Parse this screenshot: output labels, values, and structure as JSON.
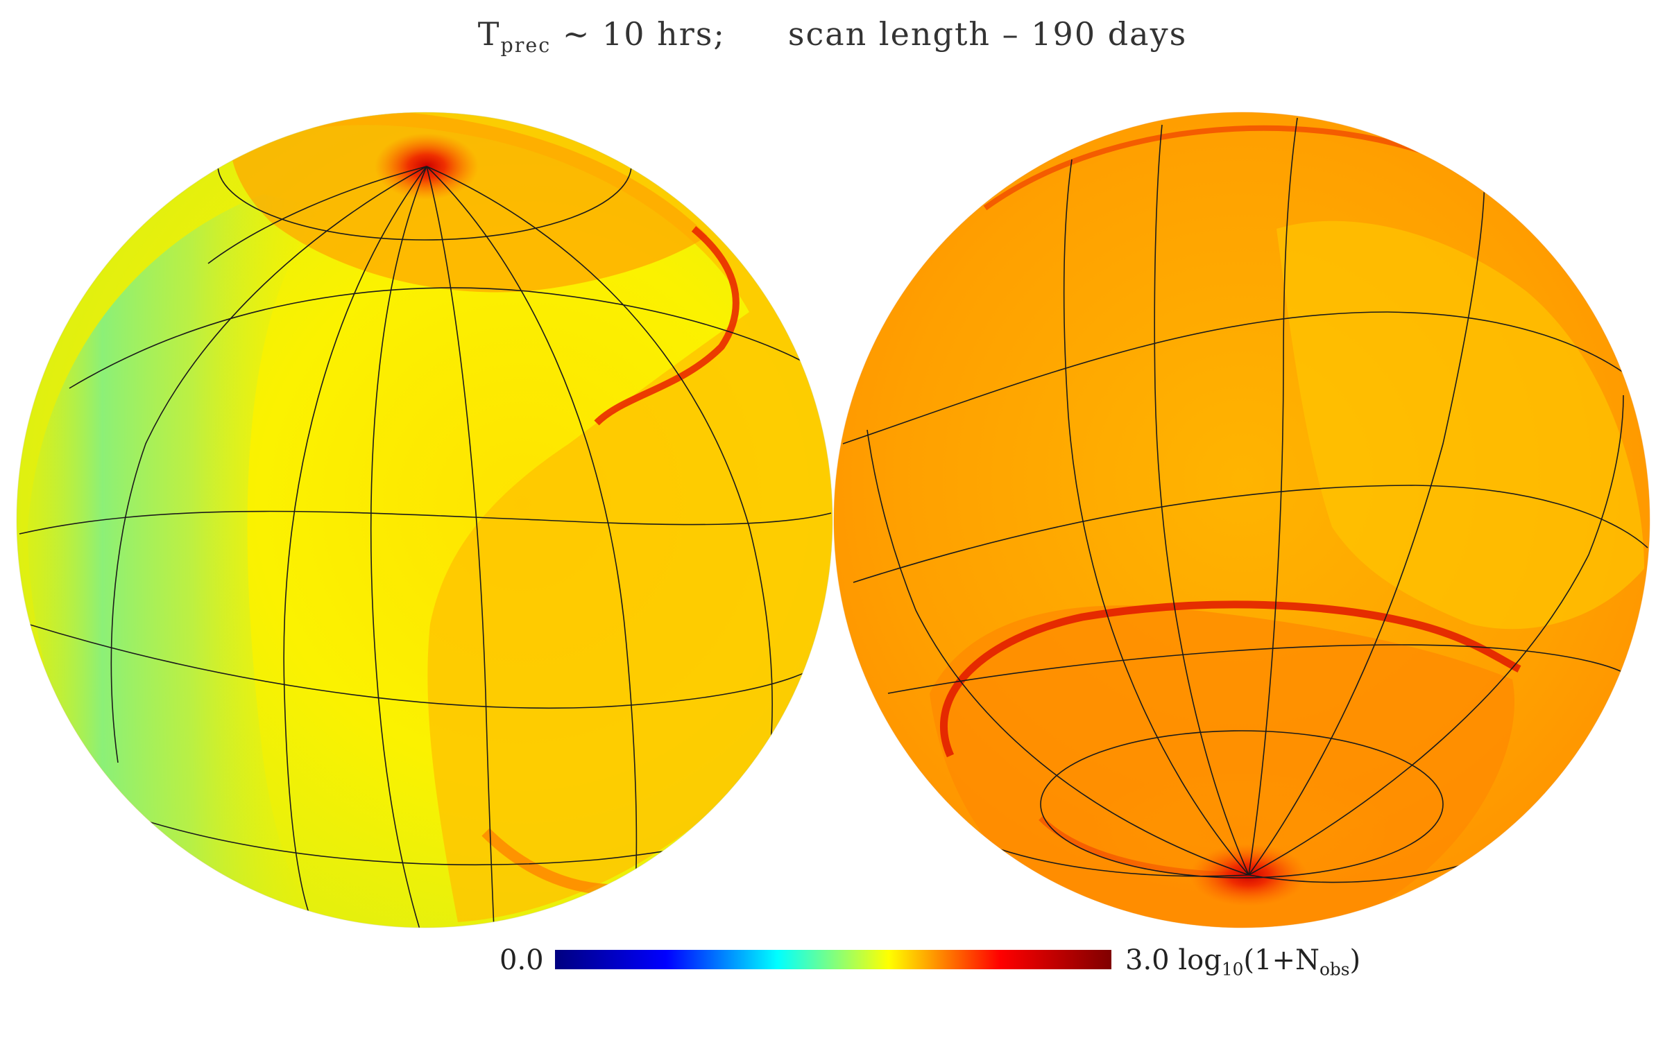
{
  "title": {
    "period_symbol": "T",
    "period_subscript": "prec",
    "period_value": "~ 10 hrs;",
    "scan_text": "scan length – 190 days"
  },
  "colorbar": {
    "min_label": "0.0",
    "max_label": "3.0",
    "quantity_prefix": "log",
    "quantity_base": "10",
    "quantity_mid": "(1+N",
    "quantity_subscript": "obs",
    "quantity_suffix": ")",
    "stops": [
      "#000080",
      "#0000ff",
      "#00ffff",
      "#ffff00",
      "#ff0000",
      "#800000"
    ]
  },
  "chart_data": {
    "type": "heatmap",
    "projection": "orthographic",
    "hemispheres": 2,
    "value_range": [
      0.0,
      3.0
    ],
    "grid": true,
    "colormap": "jet"
  }
}
